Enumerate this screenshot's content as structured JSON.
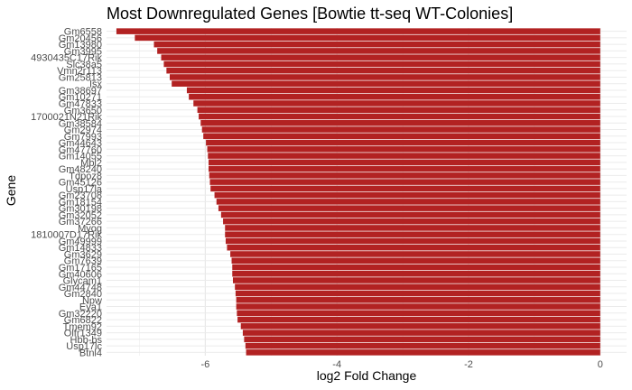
{
  "chart_data": {
    "type": "bar",
    "orientation": "horizontal",
    "title": "Most Downregulated Genes [Bowtie tt-seq WT-Colonies]",
    "xlabel": "log2 Fold Change",
    "ylabel": "Gene",
    "xlim": [
      -7.5,
      0.4
    ],
    "xticks": [
      -6,
      -4,
      -2,
      0
    ],
    "grid": true,
    "bar_color": "#B22222",
    "categories": [
      "Gm6558",
      "Gm20456",
      "Gm13980",
      "Gm3995",
      "4930435C17Rik",
      "Slc38a5",
      "Vmn2r113",
      "Gm25813",
      "Isx",
      "Gm38697",
      "Gm10271",
      "Gm47833",
      "Gm3650",
      "1700021N21Rik",
      "Gm38584",
      "Gm2974",
      "Gm7993",
      "Gm44643",
      "Gm47760",
      "Gm14055",
      "Mbl2",
      "Gm48240",
      "Tdpoz8",
      "Gm45126",
      "Usp17la",
      "Gm23708",
      "Gm18154",
      "Gm30198",
      "Gm32052",
      "Gm37266",
      "Myog",
      "1810007D17Rik",
      "Gm49999",
      "Gm14833",
      "Gm3629",
      "Gm7639",
      "Gm17165",
      "Gm40606",
      "Glycam1",
      "Gm44748",
      "Gm2840",
      "Npw",
      "Eya1",
      "Gm32220",
      "Gm6822",
      "Tmem92",
      "Olfr1349",
      "Hbb-bs",
      "Usp17lc",
      "Btnl4"
    ],
    "values": [
      -7.35,
      -7.07,
      -6.78,
      -6.73,
      -6.67,
      -6.63,
      -6.59,
      -6.54,
      -6.51,
      -6.28,
      -6.25,
      -6.18,
      -6.12,
      -6.1,
      -6.07,
      -6.05,
      -6.03,
      -5.99,
      -5.97,
      -5.96,
      -5.95,
      -5.95,
      -5.94,
      -5.93,
      -5.92,
      -5.86,
      -5.83,
      -5.8,
      -5.76,
      -5.73,
      -5.7,
      -5.7,
      -5.69,
      -5.67,
      -5.62,
      -5.6,
      -5.59,
      -5.59,
      -5.58,
      -5.55,
      -5.54,
      -5.53,
      -5.53,
      -5.52,
      -5.51,
      -5.46,
      -5.43,
      -5.41,
      -5.39,
      -5.38
    ]
  }
}
